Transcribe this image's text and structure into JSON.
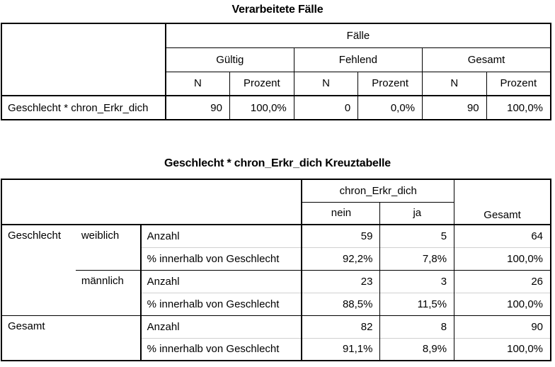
{
  "table1": {
    "title": "Verarbeitete Fälle",
    "group": "Fälle",
    "sub": [
      "Gültig",
      "Fehlend",
      "Gesamt"
    ],
    "cols": [
      "N",
      "Prozent",
      "N",
      "Prozent",
      "N",
      "Prozent"
    ],
    "row_label": "Geschlecht * chron_Erkr_dich",
    "values": [
      "90",
      "100,0%",
      "0",
      "0,0%",
      "90",
      "100,0%"
    ]
  },
  "table2": {
    "title": "Geschlecht * chron_Erkr_dich Kreuztabelle",
    "group": "chron_Erkr_dich",
    "cols": [
      "nein",
      "ja"
    ],
    "total": "Gesamt",
    "row_var": "Geschlecht",
    "cats": [
      "weiblich",
      "männlich"
    ],
    "stat_n": "Anzahl",
    "stat_pct": "% innerhalb von Geschlecht",
    "total_label": "Gesamt",
    "rows": [
      {
        "n": [
          "59",
          "5",
          "64"
        ],
        "pct": [
          "92,2%",
          "7,8%",
          "100,0%"
        ]
      },
      {
        "n": [
          "23",
          "3",
          "26"
        ],
        "pct": [
          "88,5%",
          "11,5%",
          "100,0%"
        ]
      },
      {
        "n": [
          "82",
          "8",
          "90"
        ],
        "pct": [
          "91,1%",
          "8,9%",
          "100,0%"
        ]
      }
    ]
  }
}
